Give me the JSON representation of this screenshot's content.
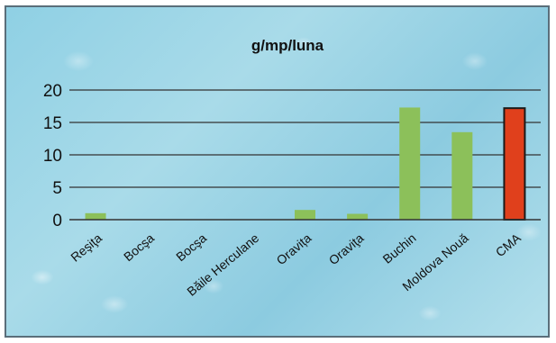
{
  "chart_data": {
    "type": "bar",
    "title": "g/mp/luna",
    "xlabel": "",
    "ylabel": "",
    "ylim": [
      0,
      20
    ],
    "yticks": [
      0,
      5,
      10,
      15,
      20
    ],
    "categories": [
      "Reşiţa",
      "Bocşa",
      "Bocşa",
      "Băile Herculane",
      "Oravița",
      "Oraviţa",
      "Buchin",
      "Moldova Nouă",
      "CMA"
    ],
    "values": [
      1.0,
      0,
      0,
      0,
      1.5,
      0.9,
      17.3,
      13.5,
      17.2
    ],
    "colors": [
      "#8cc05a",
      "#8cc05a",
      "#8cc05a",
      "#8cc05a",
      "#8cc05a",
      "#8cc05a",
      "#8cc05a",
      "#8cc05a",
      "#e0401c"
    ],
    "grid": true,
    "legend": "none"
  }
}
